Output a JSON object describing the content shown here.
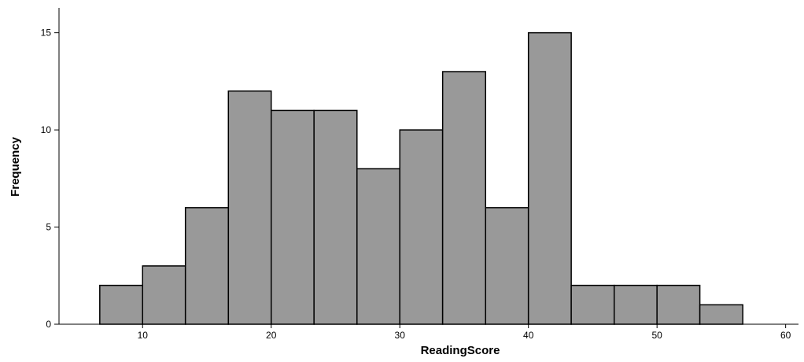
{
  "chart_data": {
    "type": "bar",
    "title": "",
    "xlabel": "ReadingScore",
    "ylabel": "Frequency",
    "bin_edges": [
      6.67,
      10,
      13.33,
      16.67,
      20,
      23.33,
      26.67,
      30,
      33.33,
      36.67,
      40,
      43.33,
      46.67,
      50,
      53.33,
      56.67
    ],
    "values": [
      2,
      3,
      6,
      12,
      11,
      11,
      8,
      10,
      13,
      6,
      15,
      2,
      2,
      2,
      1
    ],
    "xlim": [
      3.5,
      61
    ],
    "ylim": [
      0,
      16.2
    ],
    "x_ticks": [
      10,
      20,
      30,
      40,
      50,
      60
    ],
    "y_ticks": [
      0,
      5,
      10,
      15
    ],
    "grid": false,
    "legend": "none",
    "bar_color": "#999999",
    "bar_edge_color": "#000000"
  }
}
